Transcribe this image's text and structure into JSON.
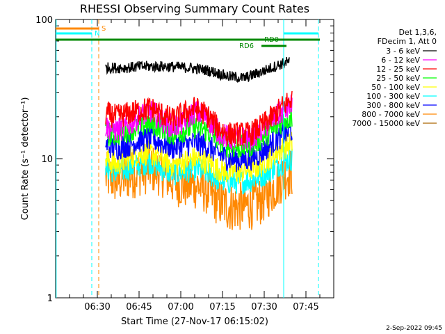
{
  "chart_data": {
    "type": "line",
    "title": "RHESSI Observing Summary Count Rates",
    "xlabel": "Start Time (27-Nov-17 06:15:02)",
    "ylabel": "Count Rate (s⁻¹ detector⁻¹)",
    "y_scale": "log",
    "ylim": [
      1,
      100
    ],
    "yticks": [
      {
        "value": 1,
        "label": "1"
      },
      {
        "value": 10,
        "label": "10"
      },
      {
        "value": 100,
        "label": "100"
      }
    ],
    "xlim_minutes": [
      0,
      100
    ],
    "xticks": [
      {
        "minute": 15,
        "label": "06:30"
      },
      {
        "minute": 30,
        "label": "06:45"
      },
      {
        "minute": 45,
        "label": "07:00"
      },
      {
        "minute": 60,
        "label": "07:15"
      },
      {
        "minute": 75,
        "label": "07:30"
      },
      {
        "minute": 90,
        "label": "07:45"
      }
    ],
    "legend_header": [
      "Det 1,3,6,",
      "FDecim 1, Att 0"
    ],
    "legend_position": "right",
    "series": [
      {
        "name": "3 - 6 keV",
        "color": "#000000",
        "x": [
          18,
          25,
          32,
          40,
          48,
          55,
          62,
          68,
          74,
          80,
          84
        ],
        "y": [
          45,
          45,
          46,
          46,
          45,
          43,
          39,
          38,
          42,
          47,
          50
        ]
      },
      {
        "name": "6 - 12 keV",
        "color": "#ff00ff",
        "x": [
          18,
          22,
          26,
          30,
          34,
          38,
          42,
          46,
          50,
          54,
          58,
          62,
          66,
          70,
          74,
          78,
          82,
          85
        ],
        "y": [
          17,
          16,
          17,
          20,
          22,
          19,
          17,
          18,
          22,
          20,
          16,
          14,
          14,
          14,
          16,
          19,
          22,
          24
        ]
      },
      {
        "name": "12 - 25 keV",
        "color": "#ff0000",
        "x": [
          18,
          22,
          26,
          30,
          34,
          38,
          42,
          46,
          50,
          54,
          58,
          62,
          66,
          70,
          74,
          78,
          82,
          85
        ],
        "y": [
          21,
          20,
          21,
          22,
          23,
          21,
          19,
          21,
          23,
          21,
          17,
          15,
          15,
          15,
          17,
          20,
          24,
          27
        ]
      },
      {
        "name": "25 - 50 keV",
        "color": "#00ff00",
        "x": [
          18,
          22,
          26,
          30,
          34,
          38,
          42,
          46,
          50,
          54,
          58,
          62,
          66,
          70,
          74,
          78,
          82,
          85
        ],
        "y": [
          15,
          15,
          16,
          17,
          18,
          17,
          15,
          16,
          17,
          16,
          14,
          12.5,
          12,
          12.5,
          14,
          16,
          19,
          20
        ]
      },
      {
        "name": "50 - 100 keV",
        "color": "#ffff00",
        "x": [
          18,
          22,
          26,
          30,
          34,
          38,
          42,
          46,
          50,
          54,
          58,
          62,
          66,
          70,
          74,
          78,
          82,
          85
        ],
        "y": [
          10,
          9,
          10,
          11,
          11,
          10,
          9,
          9.5,
          10,
          9.5,
          8.5,
          8,
          8,
          8.5,
          9,
          10.5,
          12,
          13
        ]
      },
      {
        "name": "100 - 300 keV",
        "color": "#00ffff",
        "x": [
          18,
          22,
          26,
          30,
          34,
          38,
          42,
          46,
          50,
          54,
          58,
          62,
          66,
          70,
          74,
          78,
          82,
          85
        ],
        "y": [
          8.5,
          8,
          8.5,
          9,
          9.5,
          8.5,
          7.8,
          8,
          8.5,
          8,
          7.2,
          6.8,
          6.8,
          7,
          7.5,
          8.5,
          9.5,
          10
        ]
      },
      {
        "name": "300 - 800 keV",
        "color": "#0000ff",
        "x": [
          18,
          22,
          26,
          30,
          34,
          38,
          42,
          46,
          50,
          54,
          58,
          62,
          66,
          70,
          74,
          78,
          82,
          85
        ],
        "y": [
          12.5,
          12,
          12.5,
          13.5,
          14,
          13,
          12,
          12.5,
          13,
          12.5,
          11,
          10,
          9.8,
          10,
          11,
          13,
          15,
          16
        ]
      },
      {
        "name": "800 - 7000 keV",
        "color": "#ff8800",
        "x": [
          18,
          22,
          26,
          30,
          34,
          38,
          42,
          46,
          50,
          54,
          58,
          62,
          66,
          70,
          74,
          78,
          82,
          85
        ],
        "y": [
          7.5,
          7,
          7.5,
          8,
          8.5,
          8,
          7,
          6.5,
          6.5,
          6,
          5,
          4.5,
          4.5,
          4.6,
          5,
          6,
          7.5,
          8
        ]
      },
      {
        "name": "7000 - 15000 keV",
        "color": "#aa6600",
        "x": [],
        "y": []
      }
    ],
    "vertical_markers": [
      {
        "minute": 0.2,
        "color": "#00ffff",
        "style": "solid"
      },
      {
        "minute": 13,
        "color": "#00ffff",
        "style": "dashed"
      },
      {
        "minute": 15.5,
        "color": "#ff8800",
        "style": "dashed"
      },
      {
        "minute": 82,
        "color": "#00ffff",
        "style": "solid"
      },
      {
        "minute": 94.5,
        "color": "#00ffff",
        "style": "dashed"
      }
    ],
    "annotations": [
      {
        "text": "S",
        "color": "#ff8800"
      },
      {
        "text": "N",
        "color": "#00ffff"
      },
      {
        "text": "RD0",
        "color": "#008800"
      },
      {
        "text": "RD6",
        "color": "#008800"
      }
    ],
    "timestamp": "2-Sep-2022 09:45"
  }
}
